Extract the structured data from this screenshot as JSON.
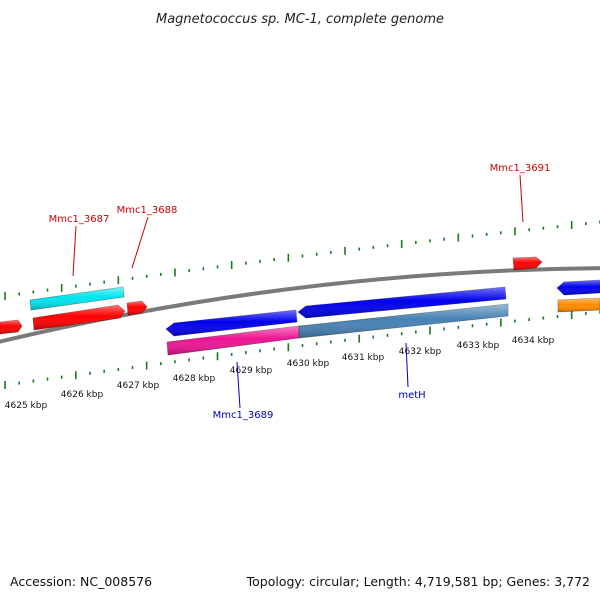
{
  "title": "Magnetococcus sp. MC-1, complete genome",
  "footer": {
    "accession": "Accession: NC_008576",
    "summary": "Topology: circular; Length: 4,719,581 bp; Genes: 3,772"
  },
  "colors": {
    "backbone": "#7a7a7a",
    "ticks": "#1a7a1a",
    "forward_label": "#cc0000",
    "reverse_label": "#0000bb"
  },
  "tick_labels": [
    "4625 kbp",
    "4626 kbp",
    "4627 kbp",
    "4628 kbp",
    "4629 kbp",
    "4630 kbp",
    "4631 kbp",
    "4632 kbp",
    "4633 kbp",
    "4634 kbp"
  ],
  "genes": [
    {
      "id": "f-left-stub",
      "color": "#ff0000",
      "strand": "+"
    },
    {
      "id": "f-cyan",
      "color": "#00e5ee",
      "strand": "+"
    },
    {
      "id": "f-red-long",
      "color": "#ff0000",
      "strand": "+"
    },
    {
      "id": "f-red-small",
      "color": "#ff0000",
      "strand": "+"
    },
    {
      "id": "f-red-3691",
      "color": "#ff0000",
      "strand": "+"
    },
    {
      "id": "r-blue-1",
      "color": "#0000ee",
      "strand": "-"
    },
    {
      "id": "r-blue-2",
      "color": "#0000ee",
      "strand": "-"
    },
    {
      "id": "r-pink",
      "color": "#ee1493",
      "strand": "-"
    },
    {
      "id": "r-steel",
      "color": "#4682b4",
      "strand": "-"
    },
    {
      "id": "r-blue-right",
      "color": "#0000ee",
      "strand": "-"
    },
    {
      "id": "r-orange",
      "color": "#ff8c00",
      "strand": "-"
    }
  ],
  "gene_labels": [
    {
      "text": "Mmc1_3687",
      "strand": "+"
    },
    {
      "text": "Mmc1_3688",
      "strand": "+"
    },
    {
      "text": "Mmc1_3691",
      "strand": "+"
    },
    {
      "text": "Mmc1_3689",
      "strand": "-"
    },
    {
      "text": "metH",
      "strand": "-"
    }
  ]
}
